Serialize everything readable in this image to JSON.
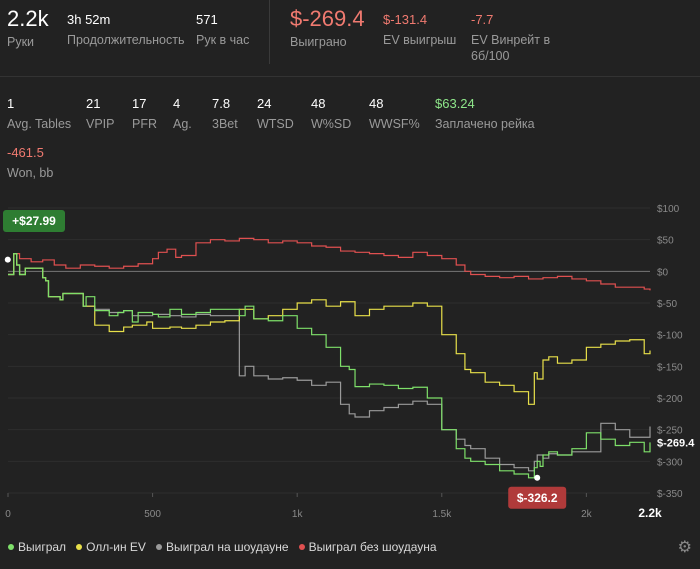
{
  "stats_top": [
    {
      "value": "2.2k",
      "label": "Руки"
    },
    {
      "value": "3h 52m",
      "label": "Продолжительность"
    },
    {
      "value": "571",
      "label": "Рук в час"
    },
    {
      "value": "$-269.4",
      "label": "Выиграно"
    },
    {
      "value": "$-131.4",
      "label": "EV выигрыш"
    },
    {
      "value": "-7.7",
      "label": "EV Винрейт в 6б/100"
    }
  ],
  "stats_mid": [
    {
      "value": "1",
      "label": "Avg. Tables"
    },
    {
      "value": "21",
      "label": "VPIP"
    },
    {
      "value": "17",
      "label": "PFR"
    },
    {
      "value": "4",
      "label": "Ag."
    },
    {
      "value": "7.8",
      "label": "3Bet"
    },
    {
      "value": "24",
      "label": "WTSD"
    },
    {
      "value": "48",
      "label": "W%SD"
    },
    {
      "value": "48",
      "label": "WWSF%"
    },
    {
      "value": "$63.24",
      "label": "Заплачено рейка"
    }
  ],
  "stats_bottom": [
    {
      "value": "-461.5",
      "label": "Won, bb"
    }
  ],
  "legend": [
    {
      "label": "Выиграл",
      "color": "#7ee06a"
    },
    {
      "label": "Олл-ин EV",
      "color": "#e8e04a"
    },
    {
      "label": "Выиграл на шоудауне",
      "color": "#9a9a9a"
    },
    {
      "label": "Выиграл без шоудауна",
      "color": "#e05050"
    }
  ],
  "icons": {
    "settings": "gear-icon"
  },
  "chart_data": {
    "type": "line",
    "x_ticks": [
      "0",
      "500",
      "1k",
      "1.5k",
      "2k",
      "2.2k"
    ],
    "x_tick_values": [
      0,
      500,
      1000,
      1500,
      2000,
      2220
    ],
    "xlim": [
      0,
      2220
    ],
    "y_ticks": [
      "$100",
      "$50",
      "$0",
      "$-50",
      "$-100",
      "$-150",
      "$-200",
      "$-250",
      "$-300",
      "$-350"
    ],
    "y_tick_values": [
      100,
      50,
      0,
      -50,
      -100,
      -150,
      -200,
      -250,
      -300,
      -350
    ],
    "ylim": [
      -350,
      100
    ],
    "end_label": "$-269.4",
    "max_annotation": {
      "text": "+$27.99",
      "x": 20,
      "y": 28
    },
    "min_annotation": {
      "text": "$-326.2",
      "x": 1830,
      "y": -326
    },
    "series": [
      {
        "name": "Выиграл",
        "color": "#7ee06a",
        "x": [
          0,
          20,
          30,
          40,
          60,
          120,
          130,
          140,
          180,
          190,
          260,
          270,
          300,
          350,
          380,
          400,
          430,
          450,
          500,
          520,
          560,
          600,
          650,
          700,
          800,
          820,
          850,
          900,
          950,
          1000,
          1050,
          1100,
          1150,
          1180,
          1200,
          1250,
          1300,
          1350,
          1400,
          1450,
          1500,
          1550,
          1580,
          1600,
          1650,
          1700,
          1750,
          1800,
          1820,
          1830,
          1840,
          1850,
          1870,
          1900,
          1950,
          2000,
          2050,
          2100,
          2150,
          2200,
          2220
        ],
        "y": [
          -5,
          28,
          10,
          -5,
          5,
          -10,
          -15,
          -40,
          -45,
          -35,
          -55,
          -40,
          -62,
          -70,
          -65,
          -62,
          -80,
          -65,
          -68,
          -72,
          -60,
          -68,
          -65,
          -60,
          -70,
          -55,
          -75,
          -78,
          -70,
          -90,
          -100,
          -120,
          -150,
          -155,
          -182,
          -178,
          -180,
          -185,
          -183,
          -200,
          -250,
          -280,
          -295,
          -300,
          -305,
          -315,
          -320,
          -326,
          -310,
          -300,
          -308,
          -290,
          -285,
          -290,
          -280,
          -255,
          -265,
          -275,
          -270,
          -285,
          -270
        ]
      },
      {
        "name": "Олл-ин EV",
        "color": "#e8e04a",
        "x": [
          0,
          20,
          30,
          40,
          60,
          120,
          130,
          140,
          180,
          190,
          260,
          300,
          350,
          400,
          430,
          480,
          500,
          560,
          600,
          650,
          700,
          750,
          800,
          850,
          900,
          950,
          1000,
          1050,
          1100,
          1150,
          1200,
          1250,
          1300,
          1350,
          1400,
          1450,
          1500,
          1550,
          1580,
          1600,
          1650,
          1700,
          1750,
          1800,
          1820,
          1830,
          1850,
          1870,
          1900,
          1950,
          2000,
          2050,
          2100,
          2150,
          2200,
          2220
        ],
        "y": [
          -5,
          28,
          10,
          -5,
          5,
          -10,
          -15,
          -40,
          -45,
          -35,
          -55,
          -85,
          -95,
          -88,
          -85,
          -80,
          -90,
          -88,
          -90,
          -85,
          -80,
          -78,
          -60,
          -75,
          -70,
          -60,
          -50,
          -45,
          -55,
          -48,
          -70,
          -60,
          -55,
          -55,
          -50,
          -55,
          -100,
          -130,
          -155,
          -160,
          -175,
          -180,
          -190,
          -210,
          -160,
          -170,
          -140,
          -135,
          -145,
          -140,
          -120,
          -115,
          -110,
          -108,
          -130,
          -125
        ]
      },
      {
        "name": "Выиграл на шоудауне",
        "color": "#9a9a9a",
        "x": [
          0,
          20,
          30,
          40,
          60,
          120,
          130,
          140,
          180,
          190,
          260,
          300,
          350,
          400,
          430,
          500,
          560,
          600,
          650,
          700,
          800,
          820,
          850,
          900,
          950,
          1000,
          1050,
          1100,
          1150,
          1180,
          1200,
          1250,
          1300,
          1350,
          1400,
          1450,
          1500,
          1550,
          1580,
          1600,
          1650,
          1700,
          1750,
          1800,
          1820,
          1830,
          1850,
          1870,
          1900,
          1950,
          2000,
          2050,
          2100,
          2150,
          2200,
          2220
        ],
        "y": [
          -5,
          28,
          10,
          -5,
          5,
          -10,
          -15,
          -40,
          -45,
          -35,
          -55,
          -60,
          -65,
          -62,
          -70,
          -68,
          -70,
          -72,
          -68,
          -70,
          -165,
          -150,
          -165,
          -170,
          -168,
          -172,
          -180,
          -175,
          -210,
          -225,
          -230,
          -220,
          -215,
          -210,
          -205,
          -210,
          -250,
          -265,
          -275,
          -280,
          -295,
          -305,
          -310,
          -315,
          -300,
          -290,
          -295,
          -288,
          -290,
          -285,
          -285,
          -240,
          -250,
          -262,
          -262,
          -245
        ]
      },
      {
        "name": "Выиграл без шоудауна",
        "color": "#e05050",
        "x": [
          0,
          20,
          40,
          80,
          120,
          160,
          200,
          250,
          300,
          350,
          400,
          450,
          500,
          520,
          550,
          580,
          600,
          650,
          700,
          750,
          800,
          850,
          900,
          950,
          1000,
          1050,
          1100,
          1150,
          1200,
          1250,
          1300,
          1350,
          1400,
          1450,
          1500,
          1550,
          1580,
          1600,
          1650,
          1700,
          1750,
          1800,
          1850,
          1900,
          1950,
          2000,
          2050,
          2100,
          2150,
          2200,
          2220
        ],
        "y": [
          -5,
          28,
          20,
          15,
          18,
          10,
          5,
          10,
          8,
          5,
          8,
          12,
          20,
          30,
          35,
          22,
          25,
          45,
          50,
          48,
          52,
          50,
          45,
          48,
          45,
          40,
          38,
          32,
          30,
          28,
          25,
          22,
          30,
          25,
          20,
          10,
          0,
          -5,
          -8,
          -10,
          -8,
          -12,
          -10,
          -8,
          -12,
          -15,
          -20,
          -25,
          -25,
          -28,
          -30
        ]
      }
    ]
  }
}
